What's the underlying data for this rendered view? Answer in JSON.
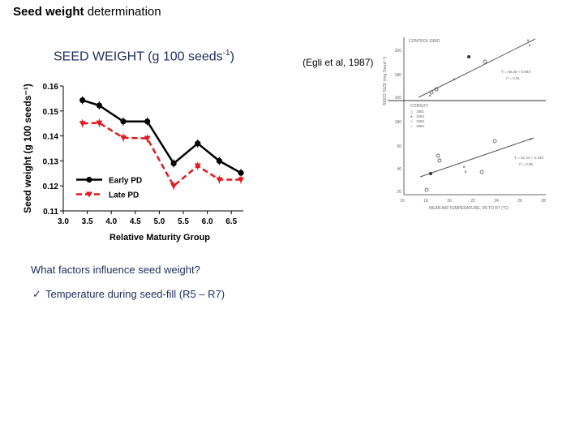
{
  "slide": {
    "title_bold": "Seed weight",
    "title_rest": " determination",
    "chart_heading_main": "SEED WEIGHT (g 100 seeds",
    "chart_heading_sup": "-1",
    "chart_heading_close": ")",
    "citation": "(Egli et al, 1987)",
    "question": "What factors influence seed weight?",
    "bullet_check": "✓",
    "bullet_text": "Temperature during seed-fill (R5 – R7)"
  },
  "colors": {
    "early": "#000000",
    "late": "#e0191c",
    "text_blue": "#1f2d5c"
  },
  "chart_data": [
    {
      "type": "line",
      "title": "",
      "xlabel": "Relative Maturity Group",
      "ylabel": "Seed weight (g 100 seeds⁻¹)",
      "xlim": [
        3.0,
        6.75
      ],
      "ylim": [
        0.11,
        0.16
      ],
      "xticks": [
        "3.0",
        "3.5",
        "4.0",
        "4.5",
        "5.0",
        "5.5",
        "6.0",
        "6.5"
      ],
      "yticks": [
        "0.11",
        "0.12",
        "0.13",
        "0.14",
        "0.15",
        "0.16"
      ],
      "x": [
        3.4,
        3.75,
        4.25,
        4.75,
        5.3,
        5.8,
        6.25,
        6.7
      ],
      "series": [
        {
          "name": "Early PD",
          "marker": "circle",
          "style": "solid",
          "values": [
            0.1543,
            0.1522,
            0.1458,
            0.1458,
            0.129,
            0.137,
            0.13,
            0.1252
          ]
        },
        {
          "name": "Late PD",
          "marker": "triangle-down",
          "style": "dashed",
          "values": [
            0.145,
            0.1452,
            0.1393,
            0.139,
            0.12,
            0.128,
            0.1225,
            0.1225
          ]
        }
      ],
      "legend": "lower-left"
    },
    {
      "type": "scatter",
      "title": "CONTROL GRID",
      "ylabel": "SEED SIZE (mg Seed⁻¹)",
      "xlabel": "MEAN AIR TEMPERATURE, R5 TO R7 (°C)",
      "xticks": [
        "16",
        "18",
        "20",
        "22",
        "24",
        "26",
        "28"
      ],
      "yticks_top": [
        "200",
        "180",
        "160"
      ],
      "yticks_bottom": [
        "180",
        "60",
        "40",
        "20"
      ],
      "legend_title": "CORSOY",
      "legend": [
        "1981",
        "1982",
        "1983",
        "1984"
      ],
      "eq_top": "Ŷ = 60.26 + 5.59X",
      "r2_top": "r² = 0.91",
      "eq_bottom": "Ŷ = 51.44 + 3.10X",
      "r2_bottom": "r² = 0.85"
    }
  ]
}
